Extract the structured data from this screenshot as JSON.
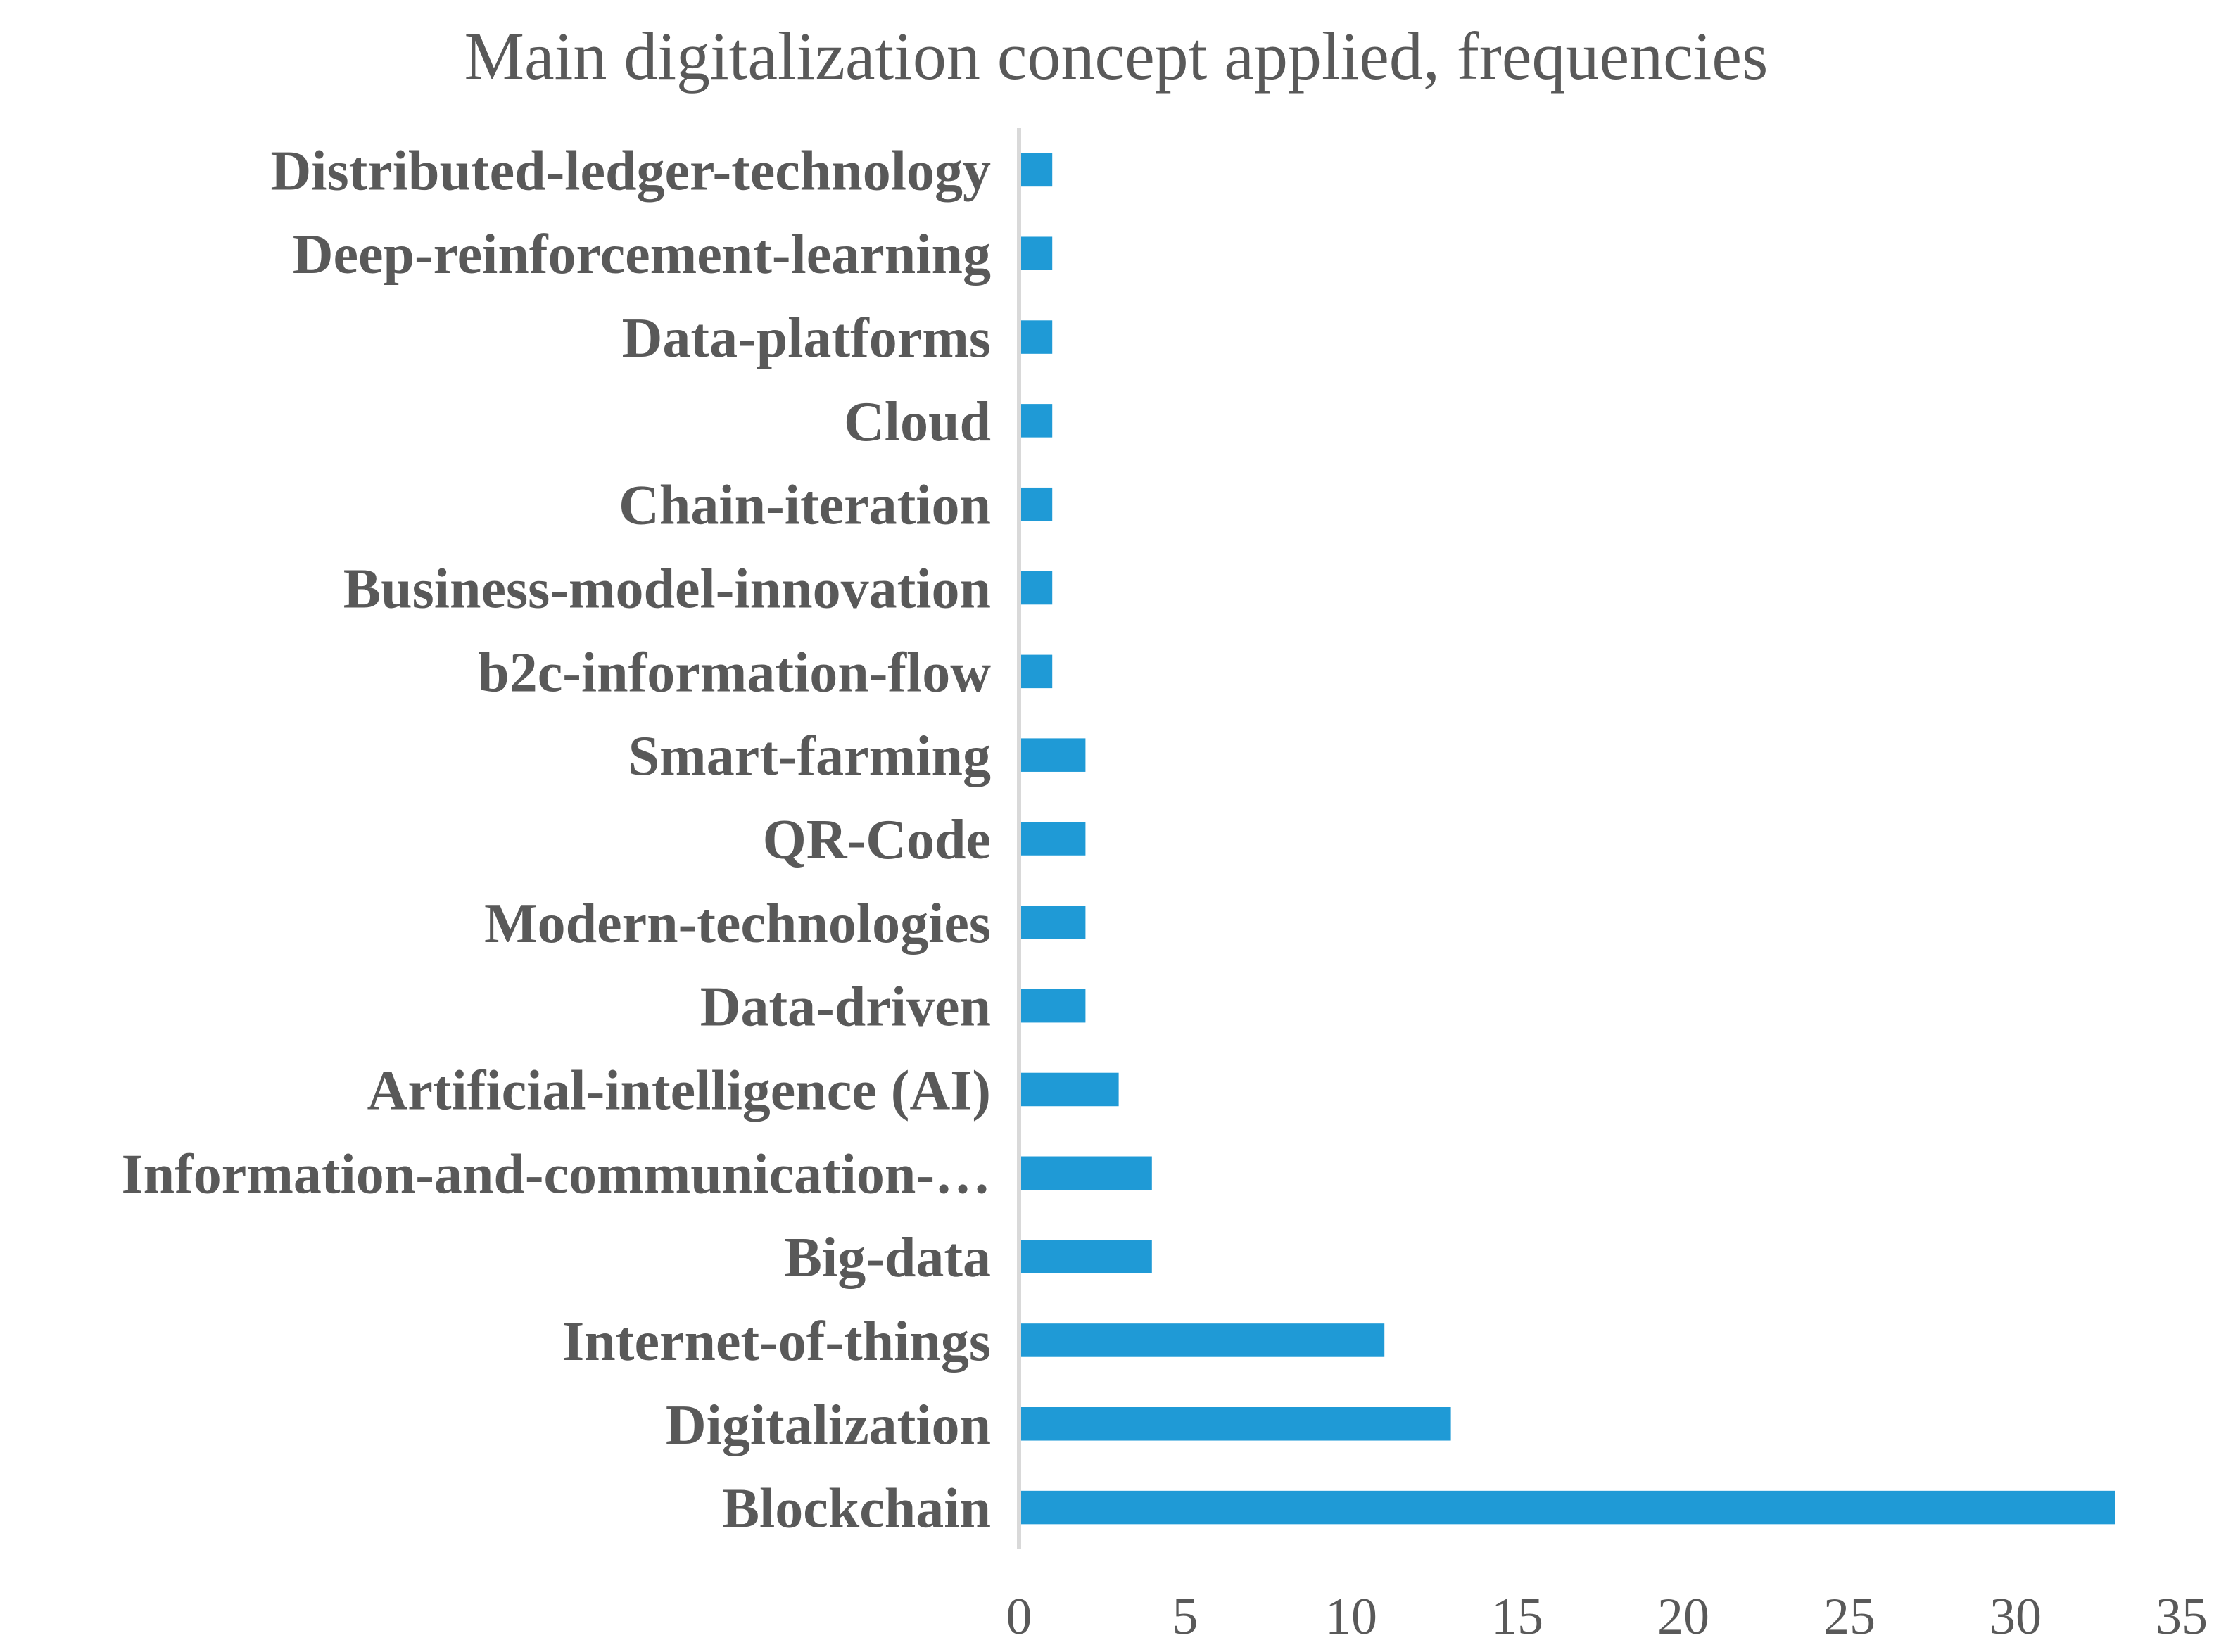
{
  "chart_data": {
    "type": "bar",
    "orientation": "horizontal",
    "title": "Main digitalization concept applied, frequencies",
    "xlabel": "",
    "ylabel": "",
    "xlim": [
      0,
      35
    ],
    "ticks": [
      0,
      5,
      10,
      15,
      20,
      25,
      30,
      35
    ],
    "grid": false,
    "legend": "none",
    "bar_color": "#1f9ad6",
    "axis_color": "#d9d9d9",
    "text_color": "#595959",
    "categories": [
      "Blockchain",
      "Digitalization",
      "Internet-of-things",
      "Big-data",
      "Information-and-communication-…",
      "Artificial-intelligence (AI)",
      "Data-driven",
      "Modern-technologies",
      "QR-Code",
      "Smart-farming",
      "b2c-information-flow",
      "Business-model-innovation",
      "Chain-iteration",
      "Cloud",
      "Data-platforms",
      "Deep-reinforcement-learning",
      "Distributed-ledger-technology"
    ],
    "values": [
      33,
      13,
      11,
      4,
      4,
      3,
      2,
      2,
      2,
      2,
      1,
      1,
      1,
      1,
      1,
      1,
      1
    ]
  }
}
